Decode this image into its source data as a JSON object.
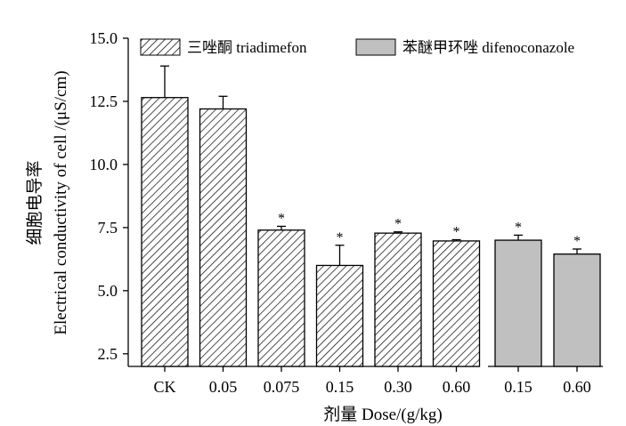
{
  "chart_data": {
    "type": "bar",
    "xlabel": "剂量 Dose/(g/kg)",
    "ylabel_cn": "细胞电导率",
    "ylabel_en": "Electrical conductivity of cell /(μS/cm)",
    "ylim": [
      2.0,
      15.0
    ],
    "yticks": [
      "2.5",
      "5.0",
      "7.5",
      "10.0",
      "12.5",
      "15.0"
    ],
    "ytick_values": [
      2.5,
      5.0,
      7.5,
      10.0,
      12.5,
      15.0
    ],
    "grid": false,
    "legend_position": "top",
    "legend": [
      {
        "label": "三唑酮 triadimefon",
        "pattern": "hatched"
      },
      {
        "label": "苯醚甲环唑 difenoconazole",
        "color": "#c0c0c0"
      }
    ],
    "series": [
      {
        "legend_index": 0,
        "categories": [
          "CK",
          "0.05",
          "0.075",
          "0.15",
          "0.30",
          "0.60"
        ],
        "values": [
          12.65,
          12.2,
          7.4,
          6.0,
          7.28,
          6.97
        ],
        "errors": [
          1.25,
          0.5,
          0.15,
          0.8,
          0.05,
          0.05
        ],
        "sig": [
          "",
          "",
          "*",
          "*",
          "*",
          "*"
        ]
      },
      {
        "legend_index": 1,
        "categories": [
          "0.15",
          "0.60"
        ],
        "values": [
          7.0,
          6.45
        ],
        "errors": [
          0.2,
          0.2
        ],
        "sig": [
          "*",
          "*"
        ]
      }
    ]
  }
}
